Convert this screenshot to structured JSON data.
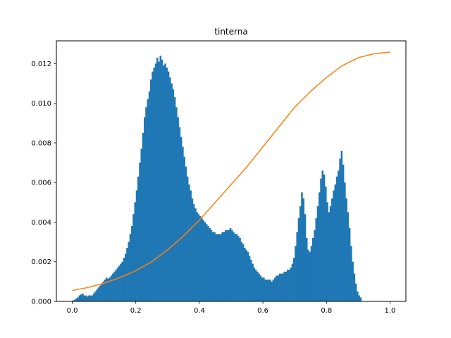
{
  "chart_data": {
    "type": "bar",
    "title": "tinterna",
    "xlabel": "",
    "ylabel": "",
    "xlim": [
      -0.05,
      1.05
    ],
    "ylim": [
      0.0,
      0.01315
    ],
    "xticks": [
      0.0,
      0.2,
      0.4,
      0.6,
      0.8,
      1.0
    ],
    "xtick_labels": [
      "0.0",
      "0.2",
      "0.4",
      "0.6",
      "0.8",
      "1.0"
    ],
    "yticks": [
      0.0,
      0.002,
      0.004,
      0.006,
      0.008,
      0.01,
      0.012
    ],
    "ytick_labels": [
      "0.000",
      "0.002",
      "0.004",
      "0.006",
      "0.008",
      "0.010",
      "0.012"
    ],
    "grid": false,
    "colors": {
      "histogram": "#1f77b4",
      "curve": "#ff7f0e"
    },
    "series": [
      {
        "type": "histogram",
        "bin_width": 0.005,
        "bin_start": 0.0,
        "values": [
          5e-05,
          8e-05,
          0.00015,
          0.0002,
          0.0003,
          0.00035,
          0.0004,
          0.0003,
          0.0003,
          0.00025,
          0.0003,
          0.0003,
          0.0003,
          0.0004,
          0.0005,
          0.0006,
          0.0007,
          0.0008,
          0.0009,
          0.001,
          0.0011,
          0.0012,
          0.00115,
          0.0012,
          0.0013,
          0.0014,
          0.0015,
          0.0016,
          0.0017,
          0.0018,
          0.0019,
          0.002,
          0.0022,
          0.0024,
          0.0027,
          0.003,
          0.0034,
          0.0038,
          0.0044,
          0.005,
          0.0056,
          0.0063,
          0.007,
          0.0077,
          0.0085,
          0.0093,
          0.0098,
          0.0102,
          0.0106,
          0.0112,
          0.0116,
          0.0118,
          0.012,
          0.0123,
          0.0121,
          0.0124,
          0.0122,
          0.0119,
          0.012,
          0.0118,
          0.0116,
          0.0113,
          0.011,
          0.0107,
          0.0103,
          0.0098,
          0.0093,
          0.0088,
          0.0083,
          0.0078,
          0.0073,
          0.0068,
          0.0063,
          0.0059,
          0.0056,
          0.0052,
          0.0049,
          0.0047,
          0.0045,
          0.0044,
          0.0043,
          0.0042,
          0.0041,
          0.004,
          0.0039,
          0.0038,
          0.0037,
          0.0036,
          0.0035,
          0.0035,
          0.0034,
          0.0034,
          0.0034,
          0.0034,
          0.0035,
          0.0035,
          0.0036,
          0.0036,
          0.0036,
          0.0037,
          0.0036,
          0.0035,
          0.0034,
          0.0034,
          0.0033,
          0.0032,
          0.003,
          0.0029,
          0.0027,
          0.0026,
          0.0025,
          0.0023,
          0.0021,
          0.0019,
          0.0017,
          0.0016,
          0.0015,
          0.0014,
          0.0013,
          0.0012,
          0.0012,
          0.0011,
          0.0011,
          0.0011,
          0.0011,
          0.001,
          0.0011,
          0.0012,
          0.0013,
          0.0013,
          0.0014,
          0.0014,
          0.0014,
          0.0015,
          0.0015,
          0.0016,
          0.0016,
          0.0017,
          0.0019,
          0.0022,
          0.0028,
          0.0035,
          0.0042,
          0.0048,
          0.0055,
          0.0052,
          0.0044,
          0.0032,
          0.0026,
          0.0025,
          0.0028,
          0.0032,
          0.0036,
          0.0042,
          0.0048,
          0.0055,
          0.0062,
          0.0066,
          0.0064,
          0.0058,
          0.005,
          0.0045,
          0.0048,
          0.0052,
          0.0056,
          0.0059,
          0.0063,
          0.0066,
          0.0072,
          0.0076,
          0.0069,
          0.006,
          0.0052,
          0.0045,
          0.0037,
          0.0028,
          0.002,
          0.0014,
          0.0009,
          0.0005,
          0.0003,
          0.0002
        ]
      },
      {
        "type": "line",
        "x": [
          0.0,
          0.05,
          0.1,
          0.15,
          0.2,
          0.25,
          0.3,
          0.35,
          0.4,
          0.45,
          0.5,
          0.55,
          0.6,
          0.65,
          0.7,
          0.75,
          0.8,
          0.85,
          0.9,
          0.95,
          1.0
        ],
        "y": [
          0.00055,
          0.0007,
          0.00092,
          0.0012,
          0.00155,
          0.002,
          0.0026,
          0.0033,
          0.0041,
          0.005,
          0.0059,
          0.0068,
          0.0078,
          0.0088,
          0.0098,
          0.0106,
          0.0113,
          0.0119,
          0.0123,
          0.0125,
          0.01258
        ]
      }
    ]
  }
}
